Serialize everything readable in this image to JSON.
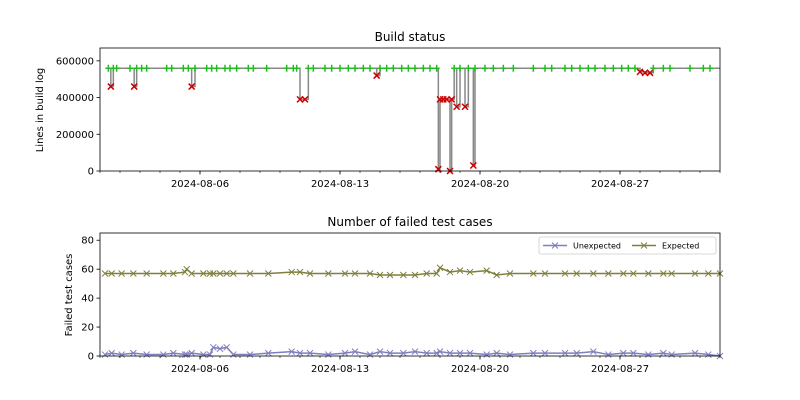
{
  "colors": {
    "ok": "#22bb22",
    "fail": "#cc0000",
    "line": "#888888",
    "unexpected": "#7f7fbf",
    "expected": "#7f7f3f"
  },
  "chart_data": [
    {
      "type": "line",
      "title": "Build status",
      "xlabel": "",
      "ylabel": "Lines in build log",
      "xlim": [
        "2024-08-01",
        "2024-09-01"
      ],
      "ylim": [
        0,
        670000
      ],
      "xticks": [
        "2024-08-06",
        "2024-08-13",
        "2024-08-20",
        "2024-08-27"
      ],
      "yticks": [
        0,
        200000,
        400000,
        600000
      ],
      "grid": false,
      "markers": {
        "ok": "plus",
        "fail": "x"
      },
      "points": [
        [
          "2024-08-01T10:00",
          560000,
          "ok"
        ],
        [
          "2024-08-01T13:00",
          460000,
          "fail"
        ],
        [
          "2024-08-01T16:00",
          560000,
          "ok"
        ],
        [
          "2024-08-01T20:00",
          560000,
          "ok"
        ],
        [
          "2024-08-02T12:00",
          560000,
          "ok"
        ],
        [
          "2024-08-02T17:00",
          460000,
          "fail"
        ],
        [
          "2024-08-02T20:00",
          560000,
          "ok"
        ],
        [
          "2024-08-03T02:00",
          560000,
          "ok"
        ],
        [
          "2024-08-03T08:00",
          560000,
          "ok"
        ],
        [
          "2024-08-04T08:00",
          560000,
          "ok"
        ],
        [
          "2024-08-04T14:00",
          560000,
          "ok"
        ],
        [
          "2024-08-05T04:00",
          560000,
          "ok"
        ],
        [
          "2024-08-05T10:00",
          560000,
          "ok"
        ],
        [
          "2024-08-05T14:00",
          460000,
          "fail"
        ],
        [
          "2024-08-05T18:00",
          560000,
          "ok"
        ],
        [
          "2024-08-06T08:00",
          560000,
          "ok"
        ],
        [
          "2024-08-06T14:00",
          560000,
          "ok"
        ],
        [
          "2024-08-06T20:00",
          560000,
          "ok"
        ],
        [
          "2024-08-07T06:00",
          560000,
          "ok"
        ],
        [
          "2024-08-07T12:00",
          560000,
          "ok"
        ],
        [
          "2024-08-07T20:00",
          560000,
          "ok"
        ],
        [
          "2024-08-08T10:00",
          560000,
          "ok"
        ],
        [
          "2024-08-08T16:00",
          560000,
          "ok"
        ],
        [
          "2024-08-09T08:00",
          560000,
          "ok"
        ],
        [
          "2024-08-10T08:00",
          560000,
          "ok"
        ],
        [
          "2024-08-10T16:00",
          560000,
          "ok"
        ],
        [
          "2024-08-10T20:00",
          560000,
          "ok"
        ],
        [
          "2024-08-11T00:00",
          390000,
          "fail"
        ],
        [
          "2024-08-11T06:00",
          390000,
          "fail"
        ],
        [
          "2024-08-11T10:00",
          560000,
          "ok"
        ],
        [
          "2024-08-11T16:00",
          560000,
          "ok"
        ],
        [
          "2024-08-12T06:00",
          560000,
          "ok"
        ],
        [
          "2024-08-12T14:00",
          560000,
          "ok"
        ],
        [
          "2024-08-13T00:00",
          560000,
          "ok"
        ],
        [
          "2024-08-13T10:00",
          560000,
          "ok"
        ],
        [
          "2024-08-13T18:00",
          560000,
          "ok"
        ],
        [
          "2024-08-14T04:00",
          560000,
          "ok"
        ],
        [
          "2024-08-14T12:00",
          560000,
          "ok"
        ],
        [
          "2024-08-14T20:00",
          520000,
          "fail"
        ],
        [
          "2024-08-15T00:00",
          560000,
          "ok"
        ],
        [
          "2024-08-15T08:00",
          560000,
          "ok"
        ],
        [
          "2024-08-15T16:00",
          560000,
          "ok"
        ],
        [
          "2024-08-16T02:00",
          560000,
          "ok"
        ],
        [
          "2024-08-16T10:00",
          560000,
          "ok"
        ],
        [
          "2024-08-16T18:00",
          560000,
          "ok"
        ],
        [
          "2024-08-17T04:00",
          560000,
          "ok"
        ],
        [
          "2024-08-17T12:00",
          560000,
          "ok"
        ],
        [
          "2024-08-17T20:00",
          560000,
          "ok"
        ],
        [
          "2024-08-17T22:00",
          10000,
          "fail"
        ],
        [
          "2024-08-18T00:00",
          390000,
          "fail"
        ],
        [
          "2024-08-18T04:00",
          390000,
          "fail"
        ],
        [
          "2024-08-18T08:00",
          390000,
          "fail"
        ],
        [
          "2024-08-18T12:00",
          0,
          "fail"
        ],
        [
          "2024-08-18T14:00",
          390000,
          "fail"
        ],
        [
          "2024-08-18T17:00",
          560000,
          "ok"
        ],
        [
          "2024-08-18T20:00",
          350000,
          "fail"
        ],
        [
          "2024-08-19T00:00",
          560000,
          "ok"
        ],
        [
          "2024-08-19T06:00",
          350000,
          "fail"
        ],
        [
          "2024-08-19T10:00",
          560000,
          "ok"
        ],
        [
          "2024-08-19T16:00",
          30000,
          "fail"
        ],
        [
          "2024-08-19T18:00",
          560000,
          "ok"
        ],
        [
          "2024-08-20T06:00",
          560000,
          "ok"
        ],
        [
          "2024-08-20T16:00",
          560000,
          "ok"
        ],
        [
          "2024-08-21T04:00",
          560000,
          "ok"
        ],
        [
          "2024-08-21T16:00",
          560000,
          "ok"
        ],
        [
          "2024-08-22T16:00",
          560000,
          "ok"
        ],
        [
          "2024-08-23T06:00",
          560000,
          "ok"
        ],
        [
          "2024-08-23T14:00",
          560000,
          "ok"
        ],
        [
          "2024-08-24T06:00",
          560000,
          "ok"
        ],
        [
          "2024-08-24T14:00",
          560000,
          "ok"
        ],
        [
          "2024-08-25T00:00",
          560000,
          "ok"
        ],
        [
          "2024-08-25T10:00",
          560000,
          "ok"
        ],
        [
          "2024-08-25T18:00",
          560000,
          "ok"
        ],
        [
          "2024-08-26T06:00",
          560000,
          "ok"
        ],
        [
          "2024-08-26T16:00",
          560000,
          "ok"
        ],
        [
          "2024-08-27T02:00",
          560000,
          "ok"
        ],
        [
          "2024-08-27T10:00",
          560000,
          "ok"
        ],
        [
          "2024-08-27T18:00",
          560000,
          "ok"
        ],
        [
          "2024-08-28T00:00",
          540000,
          "fail"
        ],
        [
          "2024-08-28T06:00",
          535000,
          "fail"
        ],
        [
          "2024-08-28T12:00",
          535000,
          "fail"
        ],
        [
          "2024-08-28T16:00",
          560000,
          "ok"
        ],
        [
          "2024-08-29T04:00",
          560000,
          "ok"
        ],
        [
          "2024-08-29T12:00",
          560000,
          "ok"
        ],
        [
          "2024-08-30T12:00",
          560000,
          "ok"
        ],
        [
          "2024-08-31T04:00",
          560000,
          "ok"
        ],
        [
          "2024-08-31T12:00",
          560000,
          "ok"
        ]
      ]
    },
    {
      "type": "line",
      "title": "Number of failed test cases",
      "xlabel": "",
      "ylabel": "Failed test cases",
      "xlim": [
        "2024-08-01",
        "2024-09-01"
      ],
      "ylim": [
        0,
        85
      ],
      "xticks": [
        "2024-08-06",
        "2024-08-13",
        "2024-08-20",
        "2024-08-27"
      ],
      "yticks": [
        0,
        20,
        40,
        60,
        80
      ],
      "grid": false,
      "legend": "top-right",
      "x": [
        "2024-08-01T06:00",
        "2024-08-01T14:00",
        "2024-08-02T02:00",
        "2024-08-02T16:00",
        "2024-08-03T08:00",
        "2024-08-04T04:00",
        "2024-08-04T16:00",
        "2024-08-05T06:00",
        "2024-08-05T08:00",
        "2024-08-05T14:00",
        "2024-08-06T04:00",
        "2024-08-06T12:00",
        "2024-08-06T16:00",
        "2024-08-07T00:00",
        "2024-08-07T08:00",
        "2024-08-07T16:00",
        "2024-08-08T12:00",
        "2024-08-09T10:00",
        "2024-08-10T14:00",
        "2024-08-11T00:00",
        "2024-08-11T12:00",
        "2024-08-12T10:00",
        "2024-08-13T06:00",
        "2024-08-13T18:00",
        "2024-08-14T12:00",
        "2024-08-15T00:00",
        "2024-08-15T12:00",
        "2024-08-16T04:00",
        "2024-08-16T18:00",
        "2024-08-17T08:00",
        "2024-08-17T20:00",
        "2024-08-18T00:00",
        "2024-08-18T12:00",
        "2024-08-19T00:00",
        "2024-08-19T12:00",
        "2024-08-20T08:00",
        "2024-08-20T20:00",
        "2024-08-21T12:00",
        "2024-08-22T16:00",
        "2024-08-23T06:00",
        "2024-08-24T06:00",
        "2024-08-24T20:00",
        "2024-08-25T16:00",
        "2024-08-26T10:00",
        "2024-08-27T04:00",
        "2024-08-27T16:00",
        "2024-08-28T10:00",
        "2024-08-29T04:00",
        "2024-08-29T14:00",
        "2024-08-30T18:00",
        "2024-08-31T10:00",
        "2024-09-01T00:00"
      ],
      "series": [
        {
          "name": "Unexpected",
          "values": [
            1,
            2,
            1,
            2,
            1,
            1,
            2,
            1,
            1,
            2,
            1,
            1,
            6,
            5,
            6,
            1,
            1,
            2,
            3,
            2,
            2,
            1,
            2,
            3,
            1,
            3,
            2,
            2,
            3,
            2,
            2,
            3,
            2,
            2,
            2,
            1,
            2,
            1,
            2,
            2,
            2,
            2,
            3,
            1,
            2,
            2,
            1,
            2,
            1,
            2,
            1,
            0
          ]
        },
        {
          "name": "Expected",
          "values": [
            57,
            57,
            57,
            57,
            57,
            57,
            57,
            58,
            60,
            57,
            57,
            57,
            57,
            57,
            57,
            57,
            57,
            57,
            58,
            58,
            57,
            57,
            57,
            57,
            57,
            56,
            56,
            56,
            56,
            57,
            57,
            61,
            58,
            59,
            58,
            59,
            56,
            57,
            57,
            57,
            57,
            57,
            57,
            57,
            57,
            57,
            57,
            57,
            57,
            57,
            57,
            57
          ]
        }
      ]
    }
  ]
}
